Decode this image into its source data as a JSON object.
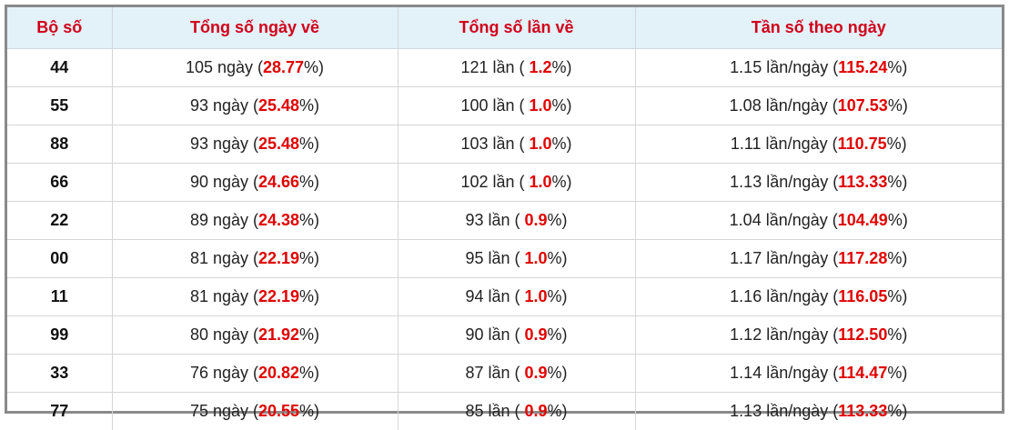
{
  "table": {
    "headers": [
      "Bộ số",
      "Tổng số ngày về",
      "Tổng số lần về",
      "Tần số theo ngày"
    ],
    "rows": [
      [
        "44",
        [
          "105 ngày (",
          "28.77",
          "%)"
        ],
        [
          "121 lần ( ",
          "1.2",
          "%)"
        ],
        [
          "1.15 lần/ngày (",
          "115.24",
          "%)"
        ]
      ],
      [
        "55",
        [
          "93 ngày (",
          "25.48",
          "%)"
        ],
        [
          "100 lần ( ",
          "1.0",
          "%)"
        ],
        [
          "1.08 lần/ngày (",
          "107.53",
          "%)"
        ]
      ],
      [
        "88",
        [
          "93 ngày (",
          "25.48",
          "%)"
        ],
        [
          "103 lần ( ",
          "1.0",
          "%)"
        ],
        [
          "1.11 lần/ngày (",
          "110.75",
          "%)"
        ]
      ],
      [
        "66",
        [
          "90 ngày (",
          "24.66",
          "%)"
        ],
        [
          "102 lần ( ",
          "1.0",
          "%)"
        ],
        [
          "1.13 lần/ngày (",
          "113.33",
          "%)"
        ]
      ],
      [
        "22",
        [
          "89 ngày (",
          "24.38",
          "%)"
        ],
        [
          "93 lần ( ",
          "0.9",
          "%)"
        ],
        [
          "1.04 lần/ngày (",
          "104.49",
          "%)"
        ]
      ],
      [
        "00",
        [
          "81 ngày (",
          "22.19",
          "%)"
        ],
        [
          "95 lần ( ",
          "1.0",
          "%)"
        ],
        [
          "1.17 lần/ngày (",
          "117.28",
          "%)"
        ]
      ],
      [
        "11",
        [
          "81 ngày (",
          "22.19",
          "%)"
        ],
        [
          "94 lần ( ",
          "1.0",
          "%)"
        ],
        [
          "1.16 lần/ngày (",
          "116.05",
          "%)"
        ]
      ],
      [
        "99",
        [
          "80 ngày (",
          "21.92",
          "%)"
        ],
        [
          "90 lần ( ",
          "0.9",
          "%)"
        ],
        [
          "1.12 lần/ngày (",
          "112.50",
          "%)"
        ]
      ],
      [
        "33",
        [
          "76 ngày (",
          "20.82",
          "%)"
        ],
        [
          "87 lần ( ",
          "0.9",
          "%)"
        ],
        [
          "1.14 lần/ngày (",
          "114.47",
          "%)"
        ]
      ],
      [
        "77",
        [
          "75 ngày (",
          "20.55",
          "%)"
        ],
        [
          "85 lần ( ",
          "0.9",
          "%)"
        ],
        [
          "1.13 lần/ngày (",
          "113.33",
          "%)"
        ]
      ]
    ]
  }
}
